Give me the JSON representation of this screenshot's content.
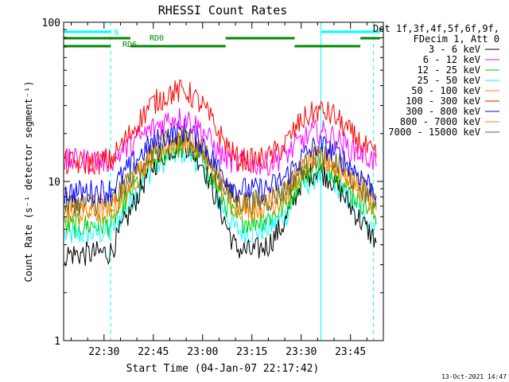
{
  "chart_data": {
    "type": "line",
    "title": "RHESSI Count Rates",
    "xlabel": "Start Time (04-Jan-07 22:17:42)",
    "ylabel": "Count Rate (s⁻¹ detector segment⁻¹)",
    "yscale": "log",
    "ylim": [
      1,
      100
    ],
    "x_unit": "minutes after 22:17:42",
    "xlim_time": [
      "22:17:42",
      "23:55:00"
    ],
    "x_tick_labels": [
      "22:30",
      "22:45",
      "23:00",
      "23:15",
      "23:30",
      "23:45"
    ],
    "y_tick_labels": [
      "1",
      "10",
      "100"
    ],
    "legend_header": [
      "Det 1f,3f,4f,5f,6f,9f,",
      "FDecim 1, Att 0"
    ],
    "legend_placement": "right",
    "grid": false,
    "footer_timestamp": "13-Oct-2021 14:47",
    "x": [
      "22:18",
      "22:25",
      "22:32",
      "22:38",
      "22:44",
      "22:50",
      "22:55",
      "23:00",
      "23:05",
      "23:10",
      "23:15",
      "23:20",
      "23:25",
      "23:30",
      "23:35",
      "23:40",
      "23:45",
      "23:50",
      "23:53"
    ],
    "series": [
      {
        "name": "3 - 6 keV",
        "color": "#000000",
        "values": [
          3.5,
          3.5,
          3.6,
          6.5,
          12,
          16,
          17,
          13,
          7,
          3.8,
          3.6,
          4.0,
          5.5,
          10,
          12,
          10,
          7,
          5.0,
          4.2
        ]
      },
      {
        "name": "6 - 12 keV",
        "color": "#ff00ff",
        "values": [
          13.5,
          13.5,
          13.5,
          17,
          21,
          25,
          25,
          21,
          15,
          13,
          13,
          13,
          14.5,
          18,
          21,
          19,
          16,
          14.5,
          13
        ]
      },
      {
        "name": "12 - 25 keV",
        "color": "#00cc00",
        "values": [
          5.2,
          5.3,
          5.4,
          8.5,
          13,
          16,
          17,
          14,
          8.5,
          5.8,
          5.6,
          5.9,
          7,
          10.5,
          13,
          11.5,
          8.5,
          7,
          5.8
        ]
      },
      {
        "name": "25 - 50 keV",
        "color": "#00ffff",
        "values": [
          4.6,
          4.7,
          4.8,
          7.5,
          11.5,
          14.5,
          15.5,
          12.5,
          7.5,
          5,
          4.8,
          5.1,
          6,
          9,
          11,
          10,
          7.5,
          6,
          5
        ]
      },
      {
        "name": "50 - 100 keV",
        "color": "#ff8800",
        "values": [
          6.3,
          6.3,
          6.4,
          9.5,
          14,
          17,
          18,
          15,
          10,
          7,
          6.8,
          7,
          8,
          11.5,
          14,
          12.5,
          10,
          8,
          6.8
        ]
      },
      {
        "name": "100 - 300 keV",
        "color": "#ff0000",
        "values": [
          13,
          13,
          13.5,
          20,
          30,
          36,
          37,
          30,
          20,
          14,
          13.5,
          14,
          17,
          24,
          28,
          26,
          20,
          16,
          14
        ]
      },
      {
        "name": "300 - 800 keV",
        "color": "#0000ff",
        "values": [
          8.5,
          8.6,
          8.8,
          12.5,
          17,
          20,
          21,
          17.5,
          12,
          9,
          8.8,
          9,
          10.5,
          14,
          17,
          15.5,
          12.5,
          10,
          8.5
        ]
      },
      {
        "name": "800 - 7000 keV",
        "color": "#ff7f00",
        "values": [
          7,
          7.1,
          7.2,
          10.5,
          15,
          18,
          19,
          16,
          10.5,
          7.6,
          7.4,
          7.6,
          8.8,
          12,
          14.5,
          13.5,
          10.5,
          8.6,
          7.4
        ]
      },
      {
        "name": "7000 - 15000 keV",
        "color": "#556b2f",
        "values": [
          7.2,
          7.2,
          7.3,
          10.5,
          15,
          18,
          18.5,
          15.5,
          10.5,
          7.6,
          7.4,
          7.6,
          8.8,
          12,
          14.5,
          13.5,
          10.5,
          8.6,
          7.4
        ]
      }
    ],
    "annotations": [
      {
        "label": "N",
        "color": "#00ffff",
        "segments": [
          [
            "22:17:42",
            "22:32"
          ],
          [
            "23:36",
            "23:54"
          ]
        ]
      },
      {
        "label": "RD0",
        "color": "#008800",
        "segments": [
          [
            "22:17:42",
            "22:38"
          ],
          [
            "23:07",
            "23:28"
          ],
          [
            "23:48",
            "23:54"
          ]
        ]
      },
      {
        "label": "RD6",
        "color": "#008800",
        "segments": [
          [
            "22:17:42",
            "22:32"
          ],
          [
            "22:38",
            "23:07"
          ],
          [
            "23:28",
            "23:48"
          ]
        ]
      }
    ],
    "vertical_markers": [
      {
        "time": "22:17:42",
        "style": "solid",
        "color": "#00ffff"
      },
      {
        "time": "22:32:00",
        "style": "dashed",
        "color": "#00ffff"
      },
      {
        "time": "23:36:00",
        "style": "solid",
        "color": "#00ffff"
      },
      {
        "time": "23:52:00",
        "style": "dashed",
        "color": "#00ffff"
      }
    ]
  }
}
